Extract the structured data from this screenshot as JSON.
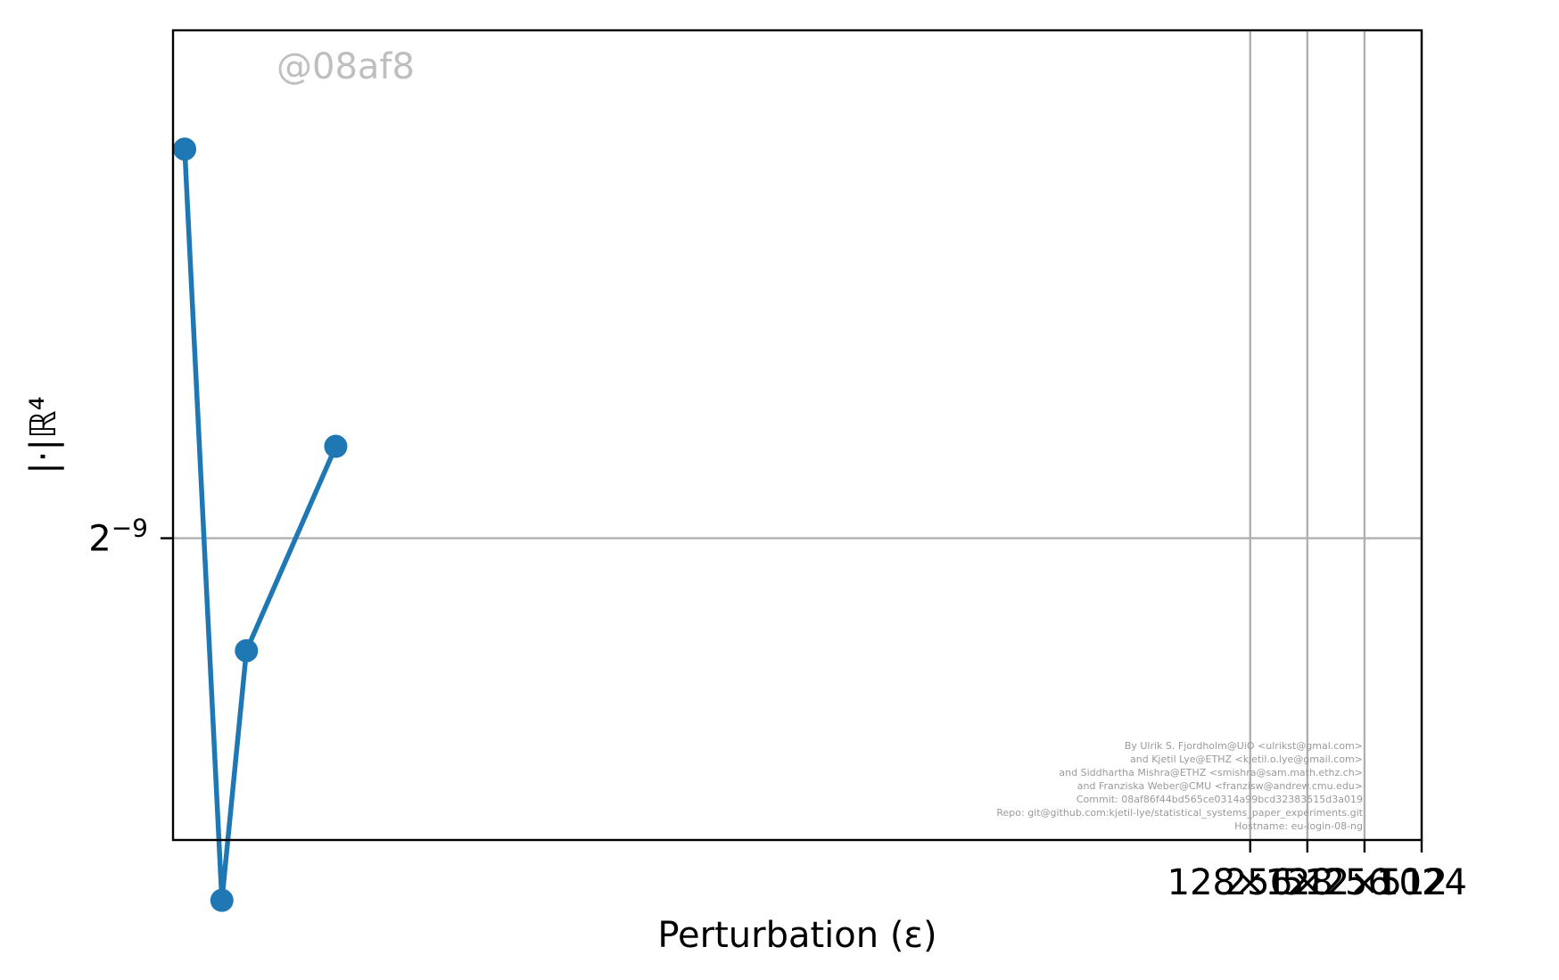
{
  "colors": {
    "series": "#1f77b4",
    "grid": "#b0b0b0",
    "watermark": "#bfbfbf",
    "credits": "#9a9a9a"
  },
  "chart_data": {
    "type": "line",
    "title": "",
    "xlabel": "Perturbation ($\\epsilon$)",
    "xlabel_display": "Perturbation (ε)",
    "ylabel": "$||\\cdot||_{\\mathbb{R}^4}$",
    "ylabel_display": "|·|ℝ⁴",
    "x_scale": "log2",
    "y_scale": "log2",
    "xlim_exponents": [
      -11.85,
      10.0
    ],
    "ylim_exponents": [
      -11.05,
      -5.55
    ],
    "grid": true,
    "x_ticks": [
      {
        "value": 128,
        "label": "128×128"
      },
      {
        "value": 256,
        "label": "256×256"
      },
      {
        "value": 512,
        "label": "512×512"
      },
      {
        "value": 1024,
        "label": "1024"
      }
    ],
    "y_ticks": [
      {
        "value": 0.001953125,
        "label": "2⁻⁹",
        "base": "2",
        "exp": "−9"
      }
    ],
    "series": [
      {
        "color": "#1f77b4",
        "marker": "circle",
        "x": [
          0.000312,
          0.00049,
          0.00066,
          0.00195
        ],
        "y": [
          0.0122,
          0.000355,
          0.00115,
          0.00301
        ]
      }
    ],
    "watermark": "@08af8",
    "credits": [
      "By Ulrik S. Fjordholm@UiO <ulrikst@gmal.com>",
      "and Kjetil Lye@ETHZ <kjetil.o.lye@gmail.com>",
      "and Siddhartha Mishra@ETHZ <smishra@sam.math.ethz.ch>",
      "and Franziska Weber@CMU <franzisw@andrew.cmu.edu>",
      "Commit: 08af86f44bd565ce0314a99bcd32383515d3a019",
      "Repo: git@github.com:kjetil-lye/statistical_systems_paper_experiments.git",
      "Hostname: eu-login-08-ng"
    ]
  }
}
